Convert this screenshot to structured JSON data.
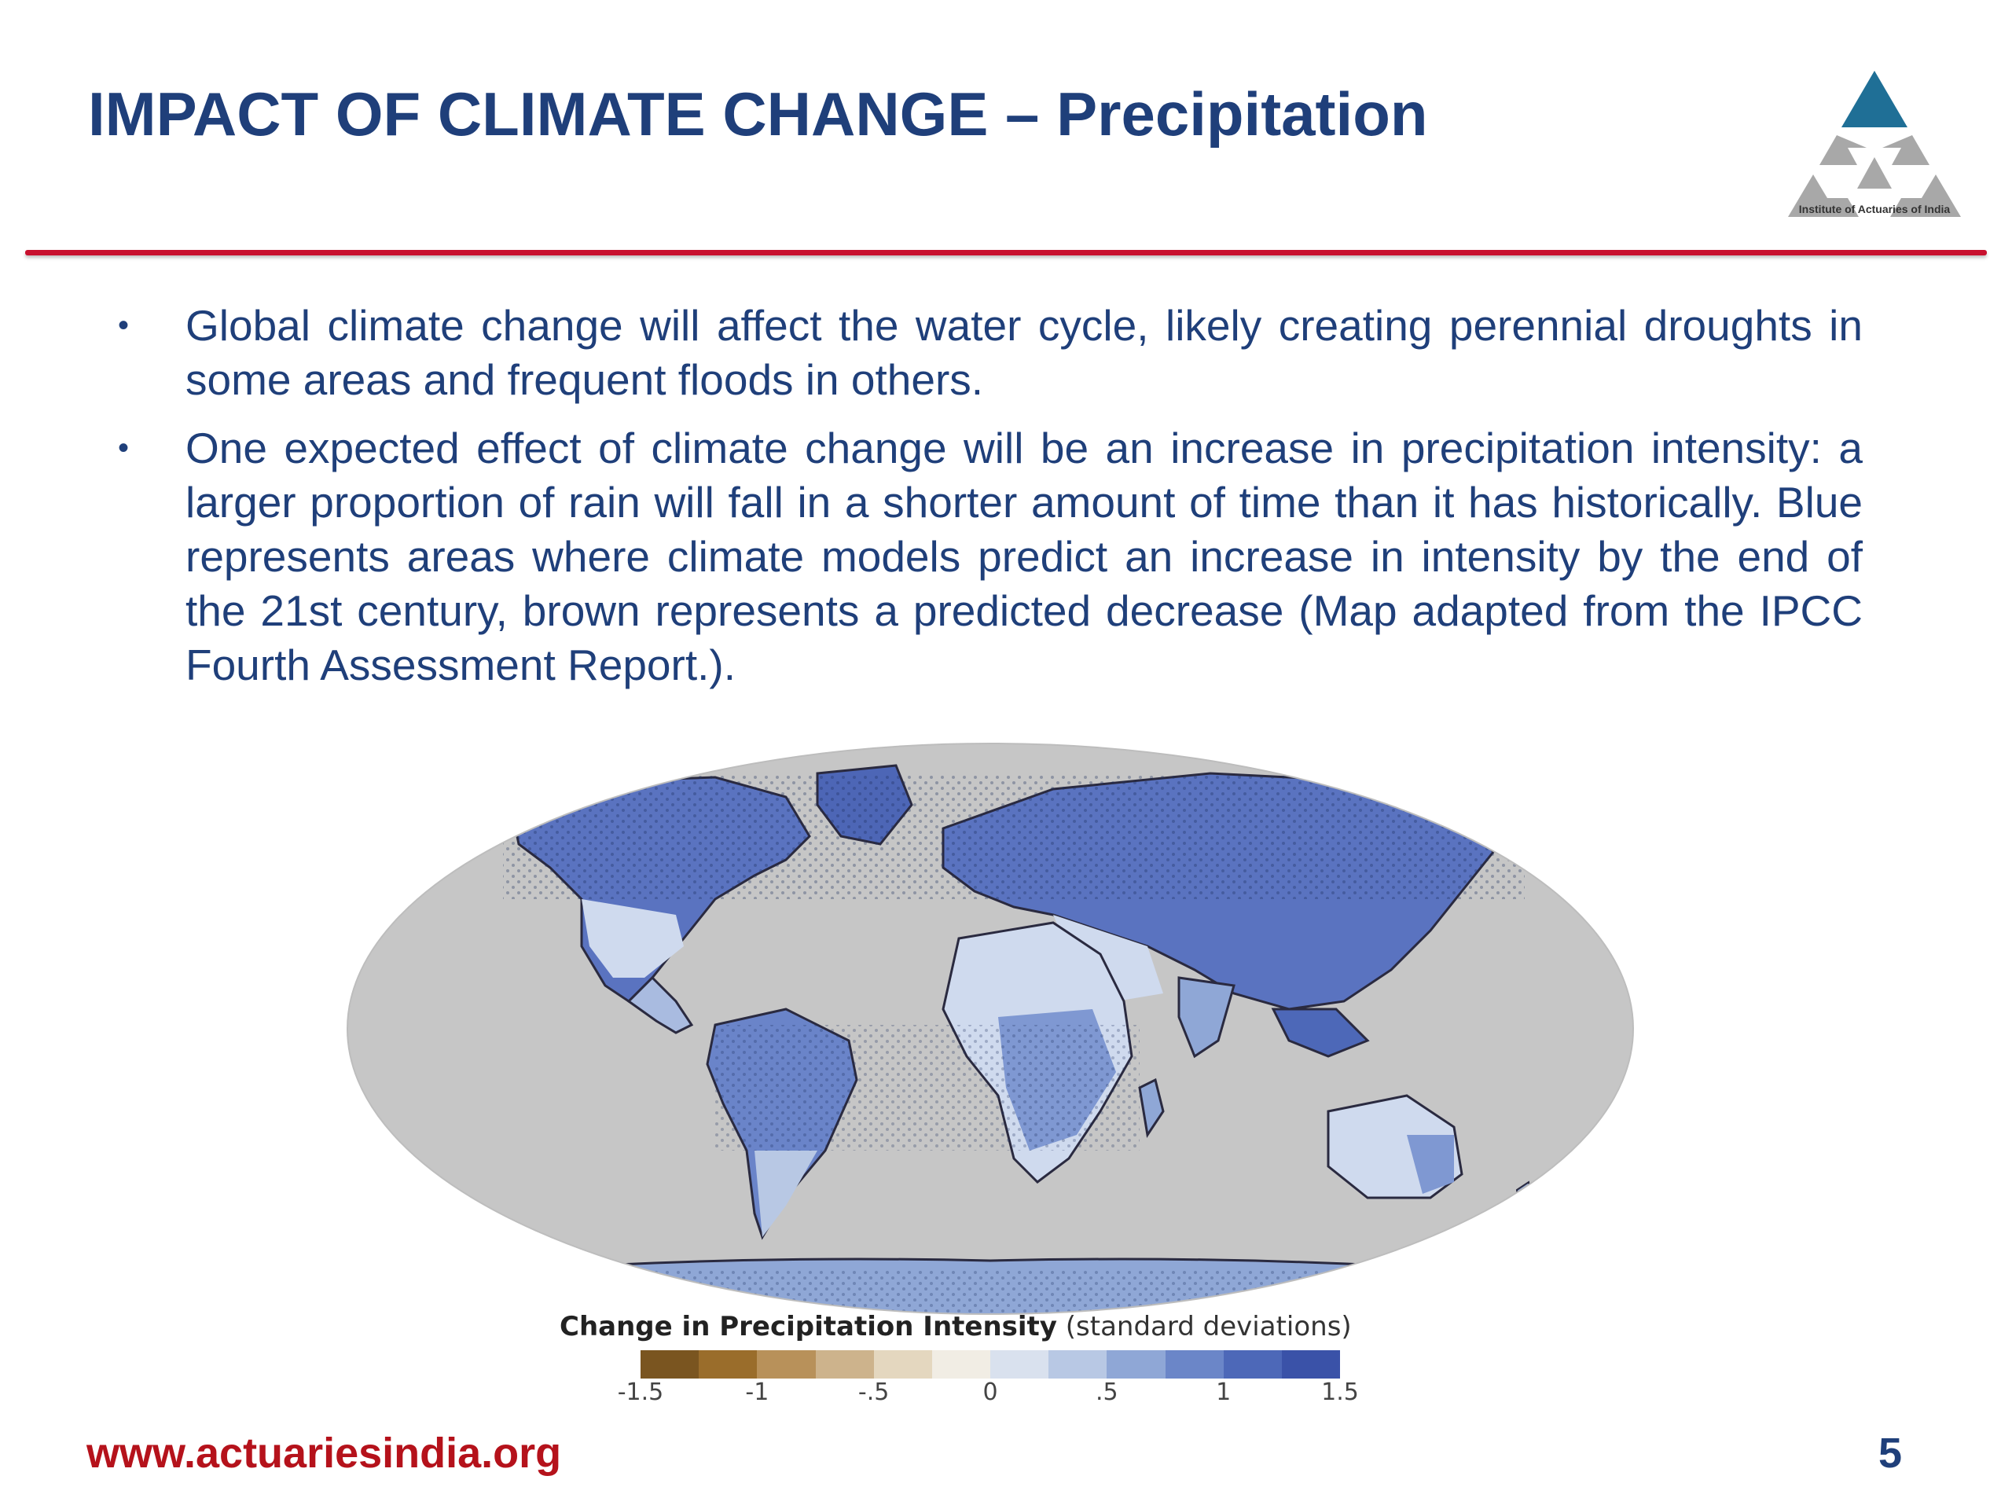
{
  "header": {
    "title": "IMPACT OF CLIMATE CHANGE – Precipitation",
    "logo_caption": "Institute of Actuaries of India"
  },
  "bullets": [
    "Global climate change will affect the water cycle, likely creating perennial droughts in some areas and frequent floods in others.",
    "One expected effect of climate change will be an increase in precipitation intensity: a larger proportion of rain will fall in a shorter amount of time than it has historically. Blue represents areas where climate models predict an increase in intensity by the end of the 21st century, brown represents a predicted decrease (Map adapted from the IPCC Fourth Assessment Report.)."
  ],
  "bullet_symbol": "•",
  "legend": {
    "title": "Change in Precipitation Intensity",
    "subtitle": "(standard deviations)",
    "ticks": [
      "-1.5",
      "-1",
      "-.5",
      "0",
      ".5",
      "1",
      "1.5"
    ],
    "colors": [
      "#7a5520",
      "#9a6d2b",
      "#b8915a",
      "#cdb38c",
      "#e4d7bf",
      "#f1ede4",
      "#d9e1ee",
      "#b8c8e4",
      "#8fa7d6",
      "#6b86c8",
      "#4d68b8",
      "#3a52a8"
    ]
  },
  "footer": {
    "url": "www.actuariesindia.org",
    "page_number": "5"
  },
  "colors": {
    "title": "#1f3f7a",
    "divider": "#c8102e",
    "footer_url": "#b5121b",
    "ocean": "#c6c6c6",
    "land_high": "#3e57ad",
    "land_mid": "#7f98d2",
    "land_low": "#cfdaee"
  }
}
